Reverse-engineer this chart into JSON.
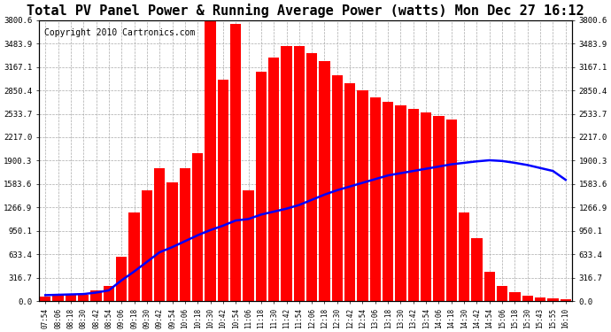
{
  "title": "Total PV Panel Power & Running Average Power (watts) Mon Dec 27 16:12",
  "copyright": "Copyright 2010 Cartronics.com",
  "yticks": [
    0.0,
    316.7,
    633.4,
    950.1,
    1266.9,
    1583.6,
    1900.3,
    2217.0,
    2533.7,
    2850.4,
    3167.1,
    3483.9,
    3800.6
  ],
  "ymax": 3800.6,
  "ymin": 0.0,
  "bg_color": "#ffffff",
  "plot_bg_color": "#ffffff",
  "bar_color": "#ff0000",
  "line_color": "#0000ff",
  "grid_color": "#aaaaaa",
  "title_fontsize": 11,
  "copyright_fontsize": 7,
  "xtick_labels": [
    "07:54",
    "08:06",
    "08:18",
    "08:30",
    "08:42",
    "08:54",
    "09:06",
    "09:18",
    "09:30",
    "09:42",
    "09:54",
    "10:06",
    "10:18",
    "10:30",
    "10:42",
    "10:54",
    "11:06",
    "11:18",
    "11:30",
    "11:42",
    "11:54",
    "12:06",
    "12:18",
    "12:30",
    "12:42",
    "12:54",
    "13:06",
    "13:18",
    "13:30",
    "13:42",
    "13:54",
    "14:06",
    "14:18",
    "14:30",
    "14:42",
    "14:54",
    "15:06",
    "15:18",
    "15:30",
    "15:43",
    "15:55",
    "16:10"
  ],
  "pv_power": [
    60,
    70,
    80,
    90,
    150,
    200,
    600,
    1200,
    1500,
    1800,
    1600,
    1800,
    2000,
    3800,
    3000,
    3750,
    1500,
    3100,
    3300,
    3450,
    3450,
    3350,
    3250,
    3050,
    2950,
    2850,
    2750,
    2700,
    2650,
    2600,
    2550,
    2500,
    2450,
    1200,
    850,
    400,
    200,
    120,
    70,
    50,
    40,
    30
  ],
  "run_avg": [
    80,
    85,
    90,
    95,
    115,
    145,
    280,
    400,
    530,
    660,
    730,
    810,
    890,
    960,
    1020,
    1090,
    1110,
    1170,
    1210,
    1250,
    1300,
    1370,
    1440,
    1500,
    1550,
    1600,
    1650,
    1700,
    1730,
    1760,
    1790,
    1820,
    1850,
    1870,
    1890,
    1905,
    1895,
    1870,
    1840,
    1800,
    1760,
    1640
  ]
}
